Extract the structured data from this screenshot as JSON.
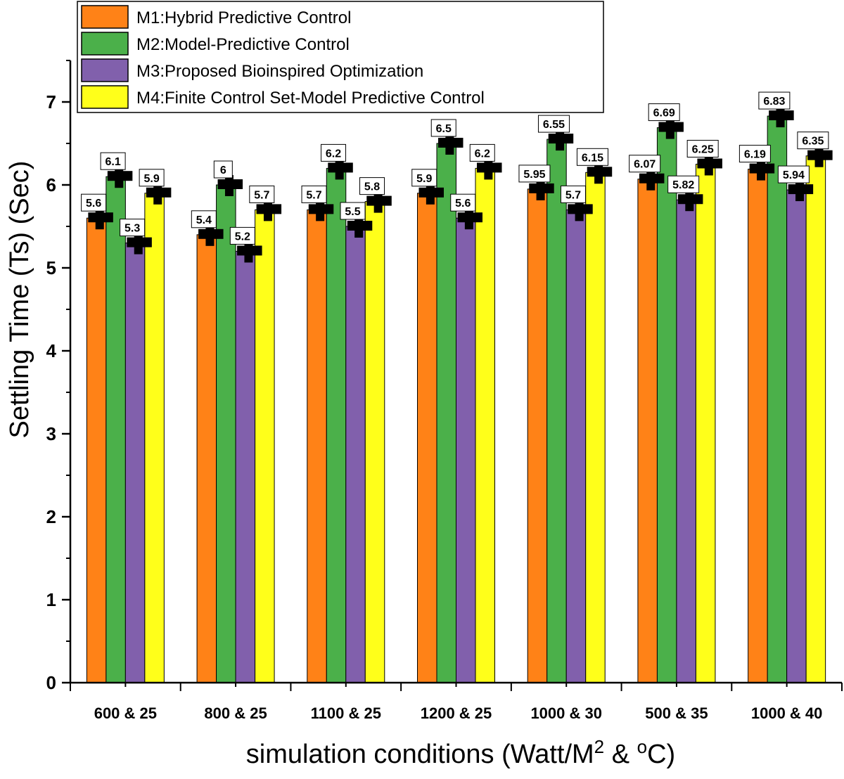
{
  "chart_data": {
    "type": "bar",
    "title": "",
    "xlabel": "simulation conditions (Watt/M",
    "xlabel_sup1": "2",
    "xlabel_mid": " & ",
    "xlabel_sup2": "o",
    "xlabel_end": "C)",
    "ylabel": "Settling Time (Ts) (Sec)",
    "ylim": [
      0,
      7.5
    ],
    "yticks": [
      0,
      1,
      2,
      3,
      4,
      5,
      6,
      7
    ],
    "categories": [
      "600 & 25",
      "800 & 25",
      "1100 & 25",
      "1200 & 25",
      "1000 & 30",
      "500 & 35",
      "1000 & 40"
    ],
    "series": [
      {
        "name": "M1:Hybrid Predictive Control",
        "color": "#ff8217",
        "values": [
          5.6,
          5.4,
          5.7,
          5.9,
          5.95,
          6.07,
          6.19
        ],
        "labels": [
          "5.6",
          "5.4",
          "5.7",
          "5.9",
          "5.95",
          "6.07",
          "6.19"
        ]
      },
      {
        "name": "M2:Model-Predictive Control",
        "color": "#4bb04a",
        "values": [
          6.1,
          6.0,
          6.2,
          6.5,
          6.55,
          6.69,
          6.83
        ],
        "labels": [
          "6.1",
          "6",
          "6.2",
          "6.5",
          "6.55",
          "6.69",
          "6.83"
        ]
      },
      {
        "name": "M3:Proposed Bioinspired Optimization",
        "color": "#8160ac",
        "values": [
          5.3,
          5.2,
          5.5,
          5.6,
          5.7,
          5.82,
          5.94
        ],
        "labels": [
          "5.3",
          "5.2",
          "5.5",
          "5.6",
          "5.7",
          "5.82",
          "5.94"
        ]
      },
      {
        "name": "M4:Finite Control Set-Model Predictive Control",
        "color": "#ffff1a",
        "values": [
          5.9,
          5.7,
          5.8,
          6.2,
          6.15,
          6.25,
          6.35
        ],
        "labels": [
          "5.9",
          "5.7",
          "5.8",
          "6.2",
          "6.15",
          "6.25",
          "6.35"
        ]
      }
    ],
    "legend_position": "top-left",
    "grid": false
  }
}
